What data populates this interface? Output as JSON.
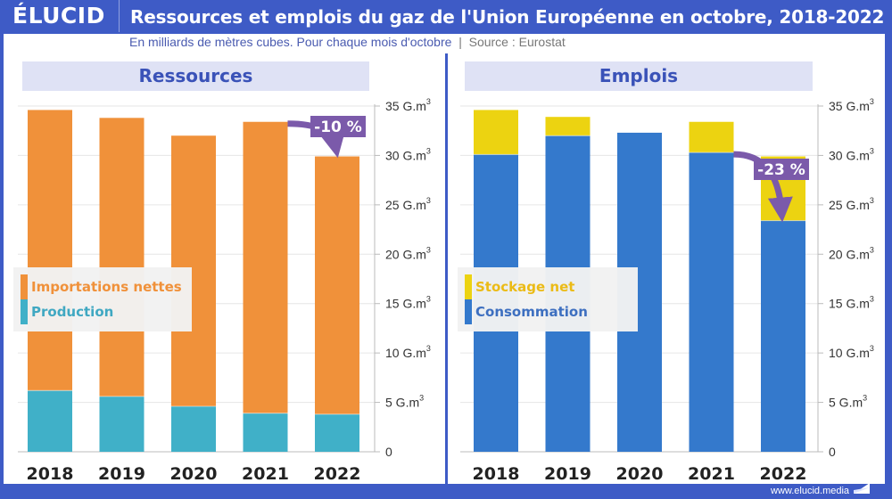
{
  "brand": {
    "logo": "ÉLUCID",
    "url": "www.elucid.media"
  },
  "header": {
    "title": "Ressources et emplois du gaz de l'Union Européenne en octobre, 2018-2022",
    "subtitle": "En milliards de mètres cubes. Pour chaque mois d'octobre",
    "separator": "|",
    "source": "Source : Eurostat"
  },
  "colors": {
    "brand_blue": "#3e5bc6",
    "imports": "#f0913a",
    "production": "#40b0c8",
    "storage": "#ecd311",
    "consumption": "#3479cc",
    "annotation": "#7b5aaa"
  },
  "chart_data": [
    {
      "type": "bar",
      "stacked": true,
      "title": "Ressources",
      "categories": [
        "2018",
        "2019",
        "2020",
        "2021",
        "2022"
      ],
      "series": [
        {
          "name": "Production",
          "values": [
            6.2,
            5.6,
            4.6,
            3.9,
            3.8
          ]
        },
        {
          "name": "Importations nettes",
          "values": [
            28.4,
            28.2,
            27.4,
            29.5,
            26.1
          ]
        }
      ],
      "totals": [
        34.6,
        33.8,
        32.0,
        33.4,
        29.9
      ],
      "legend_order": [
        "Importations nettes",
        "Production"
      ],
      "legend_placement": "middle-left",
      "xlabel": "",
      "ylabel": "",
      "ylim": [
        0,
        35
      ],
      "yticks": [
        0,
        5,
        10,
        15,
        20,
        25,
        30,
        35
      ],
      "ytick_labels": [
        "0",
        "5 G.m³",
        "10 G.m³",
        "15 G.m³",
        "20 G.m³",
        "25 G.m³",
        "30 G.m³",
        "35 G.m³"
      ],
      "grid": true,
      "annotation": {
        "text": "-10 %",
        "from": "2021",
        "to": "2022",
        "basis": "total"
      }
    },
    {
      "type": "bar",
      "stacked": true,
      "title": "Emplois",
      "categories": [
        "2018",
        "2019",
        "2020",
        "2021",
        "2022"
      ],
      "series": [
        {
          "name": "Consommation",
          "values": [
            30.1,
            32.0,
            32.3,
            30.3,
            23.4
          ]
        },
        {
          "name": "Stockage net",
          "values": [
            4.5,
            1.9,
            0.0,
            3.1,
            6.5
          ]
        }
      ],
      "totals": [
        34.6,
        33.9,
        32.3,
        33.4,
        29.9
      ],
      "legend_order": [
        "Stockage net",
        "Consommation"
      ],
      "legend_placement": "middle-left",
      "xlabel": "",
      "ylabel": "",
      "ylim": [
        0,
        35
      ],
      "yticks": [
        0,
        5,
        10,
        15,
        20,
        25,
        30,
        35
      ],
      "ytick_labels": [
        "0",
        "5 G.m³",
        "10 G.m³",
        "15 G.m³",
        "20 G.m³",
        "25 G.m³",
        "30 G.m³",
        "35 G.m³"
      ],
      "grid": true,
      "annotation": {
        "text": "-23 %",
        "from": "2021",
        "to": "2022",
        "basis": "Consommation"
      }
    }
  ]
}
